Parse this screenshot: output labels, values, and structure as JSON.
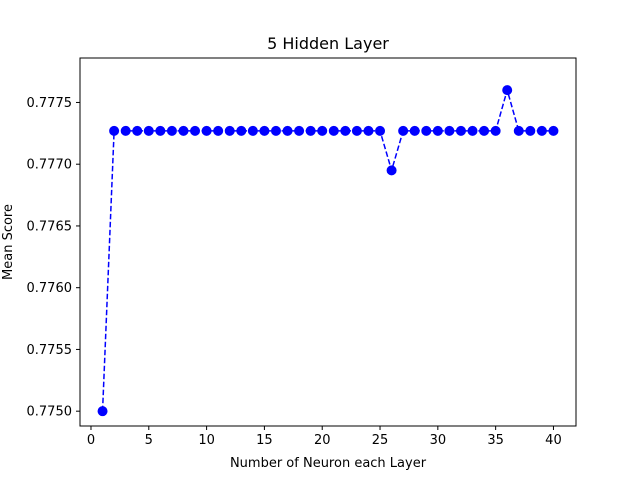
{
  "chart_data": {
    "type": "line",
    "title": "5 Hidden Layer",
    "xlabel": "Number of Neuron each Layer",
    "ylabel": "Mean Score",
    "xlim": [
      -0.95,
      41.95
    ],
    "ylim": [
      0.77488,
      0.77786
    ],
    "xticks": [
      0,
      5,
      10,
      15,
      20,
      25,
      30,
      35,
      40
    ],
    "yticks": [
      0.775,
      0.7755,
      0.776,
      0.7765,
      0.777,
      0.7775
    ],
    "ytick_labels": [
      "0.7750",
      "0.7755",
      "0.7760",
      "0.7765",
      "0.7770",
      "0.7775"
    ],
    "grid": false,
    "series": [
      {
        "color": "#0000ff",
        "line_style": "dashed",
        "marker": "circle",
        "x": [
          1,
          2,
          3,
          4,
          5,
          6,
          7,
          8,
          9,
          10,
          11,
          12,
          13,
          14,
          15,
          16,
          17,
          18,
          19,
          20,
          21,
          22,
          23,
          24,
          25,
          26,
          27,
          28,
          29,
          30,
          31,
          32,
          33,
          34,
          35,
          36,
          37,
          38,
          39,
          40
        ],
        "values": [
          0.775,
          0.77727,
          0.77727,
          0.77727,
          0.77727,
          0.77727,
          0.77727,
          0.77727,
          0.77727,
          0.77727,
          0.77727,
          0.77727,
          0.77727,
          0.77727,
          0.77727,
          0.77727,
          0.77727,
          0.77727,
          0.77727,
          0.77727,
          0.77727,
          0.77727,
          0.77727,
          0.77727,
          0.77727,
          0.77695,
          0.77727,
          0.77727,
          0.77727,
          0.77727,
          0.77727,
          0.77727,
          0.77727,
          0.77727,
          0.77727,
          0.7776,
          0.77727,
          0.77727,
          0.77727,
          0.77727
        ]
      }
    ]
  }
}
